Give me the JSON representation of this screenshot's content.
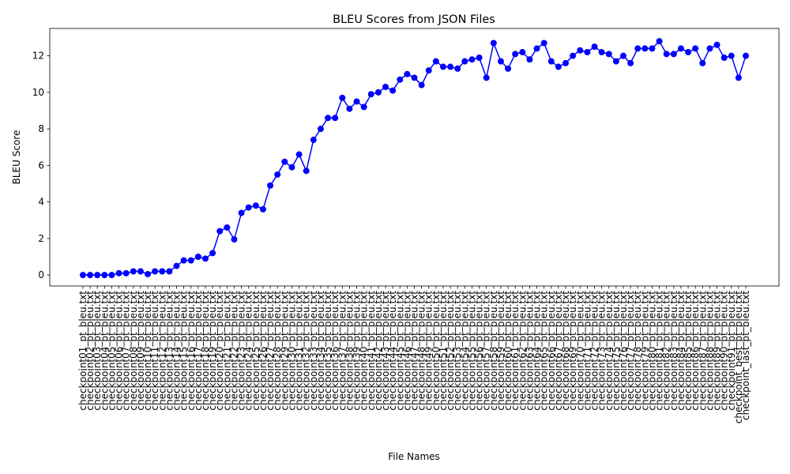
{
  "chart_data": {
    "type": "line",
    "title": "BLEU Scores from JSON Files",
    "xlabel": "File Names",
    "ylabel": "BLEU Score",
    "categories": [
      "checkpoint01_pt_bleu.txt",
      "checkpoint02_pt_bleu.txt",
      "checkpoint03_pt_bleu.txt",
      "checkpoint04_pt_bleu.txt",
      "checkpoint05_pt_bleu.txt",
      "checkpoint06_pt_bleu.txt",
      "checkpoint07_pt_bleu.txt",
      "checkpoint08_pt_bleu.txt",
      "checkpoint09_pt_bleu.txt",
      "checkpoint10_pt_bleu.txt",
      "checkpoint11_pt_bleu.txt",
      "checkpoint12_pt_bleu.txt",
      "checkpoint13_pt_bleu.txt",
      "checkpoint14_pt_bleu.txt",
      "checkpoint15_pt_bleu.txt",
      "checkpoint16_pt_bleu.txt",
      "checkpoint17_pt_bleu.txt",
      "checkpoint18_pt_bleu.txt",
      "checkpoint19_pt_bleu.txt",
      "checkpoint20_pt_bleu.txt",
      "checkpoint21_pt_bleu.txt",
      "checkpoint22_pt_bleu.txt",
      "checkpoint23_pt_bleu.txt",
      "checkpoint24_pt_bleu.txt",
      "checkpoint25_pt_bleu.txt",
      "checkpoint26_pt_bleu.txt",
      "checkpoint27_pt_bleu.txt",
      "checkpoint28_pt_bleu.txt",
      "checkpoint29_pt_bleu.txt",
      "checkpoint30_pt_bleu.txt",
      "checkpoint31_pt_bleu.txt",
      "checkpoint32_pt_bleu.txt",
      "checkpoint33_pt_bleu.txt",
      "checkpoint34_pt_bleu.txt",
      "checkpoint35_pt_bleu.txt",
      "checkpoint36_pt_bleu.txt",
      "checkpoint37_pt_bleu.txt",
      "checkpoint38_pt_bleu.txt",
      "checkpoint39_pt_bleu.txt",
      "checkpoint40_pt_bleu.txt",
      "checkpoint41_pt_bleu.txt",
      "checkpoint42_pt_bleu.txt",
      "checkpoint43_pt_bleu.txt",
      "checkpoint44_pt_bleu.txt",
      "checkpoint45_pt_bleu.txt",
      "checkpoint46_pt_bleu.txt",
      "checkpoint47_pt_bleu.txt",
      "checkpoint48_pt_bleu.txt",
      "checkpoint49_pt_bleu.txt",
      "checkpoint50_pt_bleu.txt",
      "checkpoint51_pt_bleu.txt",
      "checkpoint52_pt_bleu.txt",
      "checkpoint53_pt_bleu.txt",
      "checkpoint54_pt_bleu.txt",
      "checkpoint55_pt_bleu.txt",
      "checkpoint56_pt_bleu.txt",
      "checkpoint57_pt_bleu.txt",
      "checkpoint58_pt_bleu.txt",
      "checkpoint59_pt_bleu.txt",
      "checkpoint60_pt_bleu.txt",
      "checkpoint61_pt_bleu.txt",
      "checkpoint62_pt_bleu.txt",
      "checkpoint63_pt_bleu.txt",
      "checkpoint64_pt_bleu.txt",
      "checkpoint65_pt_bleu.txt",
      "checkpoint66_pt_bleu.txt",
      "checkpoint67_pt_bleu.txt",
      "checkpoint68_pt_bleu.txt",
      "checkpoint69_pt_bleu.txt",
      "checkpoint70_pt_bleu.txt",
      "checkpoint71_pt_bleu.txt",
      "checkpoint72_pt_bleu.txt",
      "checkpoint73_pt_bleu.txt",
      "checkpoint74_pt_bleu.txt",
      "checkpoint75_pt_bleu.txt",
      "checkpoint76_pt_bleu.txt",
      "checkpoint77_pt_bleu.txt",
      "checkpoint78_pt_bleu.txt",
      "checkpoint79_pt_bleu.txt",
      "checkpoint80_pt_bleu.txt",
      "checkpoint81_pt_bleu.txt",
      "checkpoint82_pt_bleu.txt",
      "checkpoint83_pt_bleu.txt",
      "checkpoint84_pt_bleu.txt",
      "checkpoint85_pt_bleu.txt",
      "checkpoint86_pt_bleu.txt",
      "checkpoint87_pt_bleu.txt",
      "checkpoint88_pt_bleu.txt",
      "checkpoint89_pt_bleu.txt",
      "checkpoint90_pt_bleu.txt",
      "checkpoint91_pt_bleu.txt",
      "checkpoint_best_pt_bleu.txt",
      "checkpoint_last_pt_bleu.txt"
    ],
    "values": [
      0,
      0,
      0,
      0,
      0,
      0.1,
      0.1,
      0.2,
      0.2,
      0.05,
      0.2,
      0.2,
      0.2,
      0.5,
      0.8,
      0.8,
      1.0,
      0.9,
      1.2,
      2.4,
      2.6,
      1.95,
      3.4,
      3.7,
      3.8,
      3.6,
      4.9,
      5.5,
      6.2,
      5.9,
      6.6,
      5.7,
      7.4,
      8.0,
      8.6,
      8.6,
      9.7,
      9.1,
      9.5,
      9.2,
      9.9,
      10.0,
      10.3,
      10.1,
      10.7,
      11.0,
      10.8,
      10.4,
      11.2,
      11.7,
      11.4,
      11.4,
      11.3,
      11.7,
      11.8,
      11.9,
      10.8,
      12.7,
      11.7,
      11.3,
      12.1,
      12.2,
      11.8,
      12.4,
      12.7,
      11.7,
      11.4,
      11.6,
      12.0,
      12.3,
      12.2,
      12.5,
      12.2,
      12.1,
      11.7,
      12.0,
      11.6,
      12.4,
      12.4,
      12.4,
      12.8,
      12.1,
      12.1,
      12.4,
      12.2,
      12.4,
      11.6,
      12.4,
      12.6,
      11.9,
      12.0,
      10.8,
      12.0
    ],
    "color": "#0000ff",
    "ylim": [
      -0.6,
      13.5
    ],
    "yticks": [
      0,
      2,
      4,
      6,
      8,
      10,
      12
    ],
    "grid": false
  }
}
